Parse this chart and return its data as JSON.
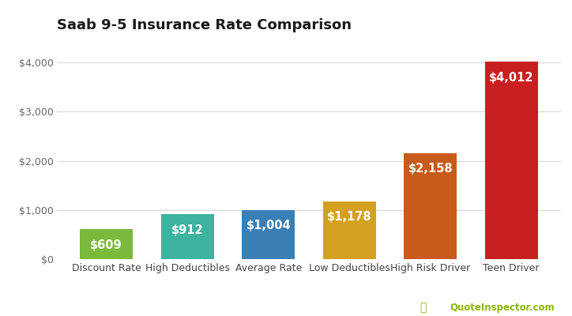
{
  "title": "Saab 9-5 Insurance Rate Comparison",
  "categories": [
    "Discount Rate",
    "High Deductibles",
    "Average Rate",
    "Low Deductibles",
    "High Risk Driver",
    "Teen Driver"
  ],
  "values": [
    609,
    912,
    1004,
    1178,
    2158,
    4012
  ],
  "bar_colors": [
    "#7aba3a",
    "#3db3a0",
    "#3a7fb5",
    "#d4a020",
    "#c85a1a",
    "#c82020"
  ],
  "labels": [
    "$609",
    "$912",
    "$1,004",
    "$1,178",
    "$2,158",
    "$4,012"
  ],
  "ylim": [
    0,
    4500
  ],
  "yticks": [
    0,
    1000,
    2000,
    3000,
    4000
  ],
  "ytick_labels": [
    "$0",
    "$1,000",
    "$2,000",
    "$3,000",
    "$4,000"
  ],
  "background_color": "#ffffff",
  "grid_color": "#d8d8d8",
  "title_fontsize": 13,
  "label_fontsize": 10.5,
  "tick_fontsize": 9,
  "watermark": "QuoteInspector.com",
  "watermark_color": "#8ab800",
  "watermark_icon_color": "#8ab800"
}
